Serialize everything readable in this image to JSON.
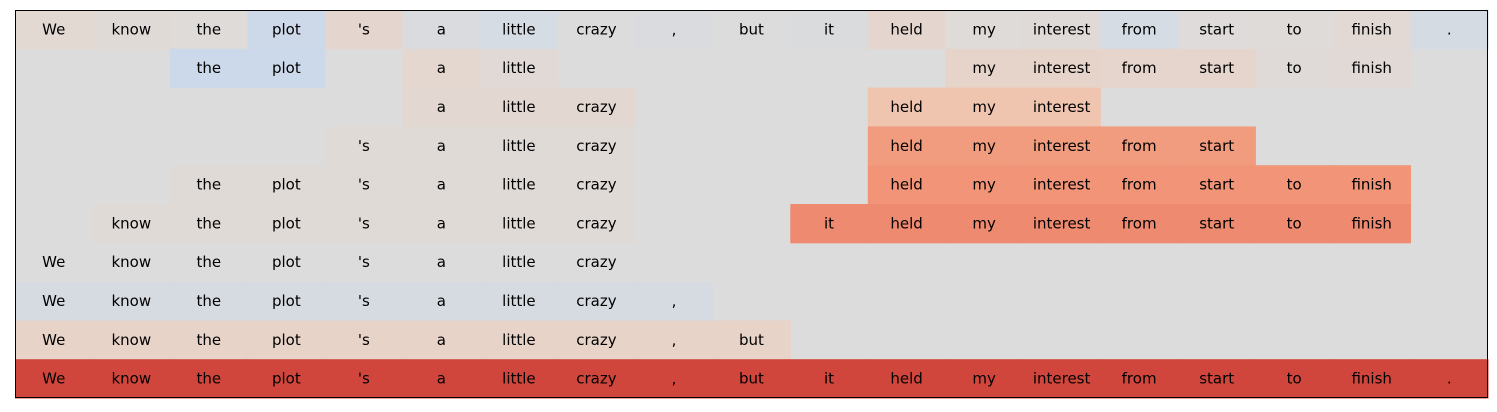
{
  "chart_data": {
    "type": "heatmap",
    "title": "",
    "xlabel": "",
    "ylabel": "",
    "grid": false,
    "legend": "none",
    "tokens": [
      "We",
      "know",
      "the",
      "plot",
      "'s",
      "a",
      "little",
      "crazy",
      ",",
      "but",
      "it",
      "held",
      "my",
      "interest",
      "from",
      "start",
      "to",
      "finish",
      "."
    ],
    "empty_color": "#dcdcdc",
    "rows": [
      {
        "cells": [
          {
            "token": 0,
            "color": "#e3d9d3"
          },
          {
            "token": 1,
            "color": "#e0dad7"
          },
          {
            "token": 2,
            "color": "#dedbd9"
          },
          {
            "token": 3,
            "color": "#cdd9e9"
          },
          {
            "token": 4,
            "color": "#e4d6cf"
          },
          {
            "token": 5,
            "color": "#d9dbdf"
          },
          {
            "token": 6,
            "color": "#d6dce4"
          },
          {
            "token": 7,
            "color": "#dcdcdc"
          },
          {
            "token": 8,
            "color": "#d9dbde"
          },
          {
            "token": 9,
            "color": "#dcdcdc"
          },
          {
            "token": 10,
            "color": "#dadbdd"
          },
          {
            "token": 11,
            "color": "#e4d6ce"
          },
          {
            "token": 12,
            "color": "#dedbd9"
          },
          {
            "token": 13,
            "color": "#dfdad7"
          },
          {
            "token": 14,
            "color": "#d6dce4"
          },
          {
            "token": 15,
            "color": "#dedbda"
          },
          {
            "token": 16,
            "color": "#dedbd9"
          },
          {
            "token": 17,
            "color": "#e2d9d4"
          },
          {
            "token": 18,
            "color": "#d5dbe3"
          }
        ]
      },
      {
        "cells": [
          {
            "token": 2,
            "color": "#ccd9ea"
          },
          {
            "token": 3,
            "color": "#ccd9ea"
          },
          {
            "token": 5,
            "color": "#e4d7cf"
          },
          {
            "token": 6,
            "color": "#e1d9d5"
          },
          {
            "token": 12,
            "color": "#e6d4ca"
          },
          {
            "token": 13,
            "color": "#e6d4ca"
          },
          {
            "token": 14,
            "color": "#e5d5cc"
          },
          {
            "token": 15,
            "color": "#e5d5cc"
          },
          {
            "token": 16,
            "color": "#dfdad7"
          },
          {
            "token": 17,
            "color": "#e1d9d5"
          }
        ]
      },
      {
        "cells": [
          {
            "token": 5,
            "color": "#e3d8d1"
          },
          {
            "token": 6,
            "color": "#e3d8d1"
          },
          {
            "token": 7,
            "color": "#e3d8d1"
          },
          {
            "token": 11,
            "color": "#efc5b0"
          },
          {
            "token": 12,
            "color": "#efc5b0"
          },
          {
            "token": 13,
            "color": "#efc5b0"
          }
        ]
      },
      {
        "cells": [
          {
            "token": 4,
            "color": "#e0dad6"
          },
          {
            "token": 5,
            "color": "#e0dad6"
          },
          {
            "token": 6,
            "color": "#e0dad6"
          },
          {
            "token": 7,
            "color": "#e0dad6"
          },
          {
            "token": 11,
            "color": "#f19c7e"
          },
          {
            "token": 12,
            "color": "#f19c7e"
          },
          {
            "token": 13,
            "color": "#f19c7e"
          },
          {
            "token": 14,
            "color": "#f19c7e"
          },
          {
            "token": 15,
            "color": "#f19c7e"
          }
        ]
      },
      {
        "cells": [
          {
            "token": 2,
            "color": "#e0dad6"
          },
          {
            "token": 3,
            "color": "#e0dad6"
          },
          {
            "token": 4,
            "color": "#e0dad6"
          },
          {
            "token": 5,
            "color": "#e0dad6"
          },
          {
            "token": 6,
            "color": "#e0dad6"
          },
          {
            "token": 7,
            "color": "#e0dad6"
          },
          {
            "token": 11,
            "color": "#f29477"
          },
          {
            "token": 12,
            "color": "#f29477"
          },
          {
            "token": 13,
            "color": "#f29477"
          },
          {
            "token": 14,
            "color": "#f29477"
          },
          {
            "token": 15,
            "color": "#f29477"
          },
          {
            "token": 16,
            "color": "#f29477"
          },
          {
            "token": 17,
            "color": "#f29477"
          }
        ]
      },
      {
        "cells": [
          {
            "token": 1,
            "color": "#e0dad7"
          },
          {
            "token": 2,
            "color": "#e0dad7"
          },
          {
            "token": 3,
            "color": "#e0dad7"
          },
          {
            "token": 4,
            "color": "#e0dad7"
          },
          {
            "token": 5,
            "color": "#e0dad7"
          },
          {
            "token": 6,
            "color": "#e0dad7"
          },
          {
            "token": 7,
            "color": "#e0dad7"
          },
          {
            "token": 10,
            "color": "#ee8a6f"
          },
          {
            "token": 11,
            "color": "#ee8a6f"
          },
          {
            "token": 12,
            "color": "#ee8a6f"
          },
          {
            "token": 13,
            "color": "#ee8a6f"
          },
          {
            "token": 14,
            "color": "#ee8a6f"
          },
          {
            "token": 15,
            "color": "#ee8a6f"
          },
          {
            "token": 16,
            "color": "#ee8a6f"
          },
          {
            "token": 17,
            "color": "#ee8a6f"
          }
        ]
      },
      {
        "cells": [
          {
            "token": 0,
            "color": "#dcdcdc"
          },
          {
            "token": 1,
            "color": "#dcdcdc"
          },
          {
            "token": 2,
            "color": "#dcdcdc"
          },
          {
            "token": 3,
            "color": "#dcdcdc"
          },
          {
            "token": 4,
            "color": "#dcdcdc"
          },
          {
            "token": 5,
            "color": "#dcdcdc"
          },
          {
            "token": 6,
            "color": "#dcdcdc"
          },
          {
            "token": 7,
            "color": "#dcdcdc"
          }
        ]
      },
      {
        "cells": [
          {
            "token": 0,
            "color": "#d6dbe2"
          },
          {
            "token": 1,
            "color": "#d6dbe2"
          },
          {
            "token": 2,
            "color": "#d6dbe2"
          },
          {
            "token": 3,
            "color": "#d6dbe2"
          },
          {
            "token": 4,
            "color": "#d6dbe2"
          },
          {
            "token": 5,
            "color": "#d6dbe2"
          },
          {
            "token": 6,
            "color": "#d6dbe2"
          },
          {
            "token": 7,
            "color": "#d6dbe2"
          },
          {
            "token": 8,
            "color": "#d6dbe2"
          }
        ]
      },
      {
        "cells": [
          {
            "token": 0,
            "color": "#e8d3c8"
          },
          {
            "token": 1,
            "color": "#e8d3c8"
          },
          {
            "token": 2,
            "color": "#e8d3c8"
          },
          {
            "token": 3,
            "color": "#e8d3c8"
          },
          {
            "token": 4,
            "color": "#e8d3c8"
          },
          {
            "token": 5,
            "color": "#e8d3c8"
          },
          {
            "token": 6,
            "color": "#e8d3c8"
          },
          {
            "token": 7,
            "color": "#e8d3c8"
          },
          {
            "token": 8,
            "color": "#e8d3c8"
          },
          {
            "token": 9,
            "color": "#e8d3c8"
          }
        ]
      },
      {
        "cells": [
          {
            "token": 0,
            "color": "#d1463c"
          },
          {
            "token": 1,
            "color": "#d1463c"
          },
          {
            "token": 2,
            "color": "#d1463c"
          },
          {
            "token": 3,
            "color": "#d1463c"
          },
          {
            "token": 4,
            "color": "#d1463c"
          },
          {
            "token": 5,
            "color": "#d1463c"
          },
          {
            "token": 6,
            "color": "#d1463c"
          },
          {
            "token": 7,
            "color": "#d1463c"
          },
          {
            "token": 8,
            "color": "#d1463c"
          },
          {
            "token": 9,
            "color": "#d1463c"
          },
          {
            "token": 10,
            "color": "#d1463c"
          },
          {
            "token": 11,
            "color": "#d1463c"
          },
          {
            "token": 12,
            "color": "#d1463c"
          },
          {
            "token": 13,
            "color": "#d1463c"
          },
          {
            "token": 14,
            "color": "#d1463c"
          },
          {
            "token": 15,
            "color": "#d1463c"
          },
          {
            "token": 16,
            "color": "#d1463c"
          },
          {
            "token": 17,
            "color": "#d1463c"
          },
          {
            "token": 18,
            "color": "#d1463c"
          }
        ]
      }
    ]
  }
}
